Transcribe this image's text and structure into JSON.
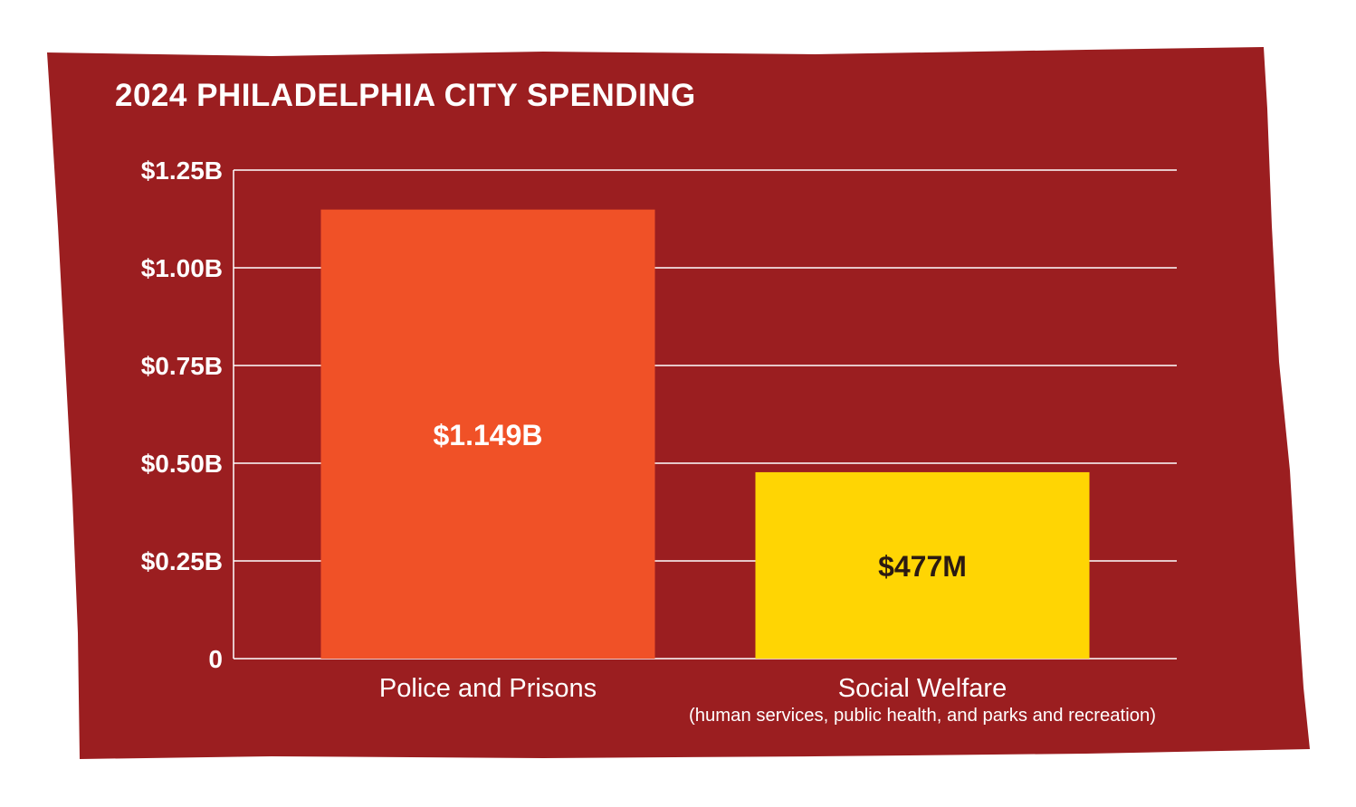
{
  "chart_data": {
    "type": "bar",
    "title": "2024 PHILADELPHIA CITY SPENDING",
    "categories": [
      "Police and Prisons",
      "Social Welfare"
    ],
    "category_sublabels": [
      "",
      "(human services, public health, and parks and recreation)"
    ],
    "values": [
      1.149,
      0.477
    ],
    "value_labels": [
      "$1.149B",
      "$477M"
    ],
    "units": "billions USD",
    "ylim": [
      0,
      1.25
    ],
    "yticks": [
      0,
      0.25,
      0.5,
      0.75,
      1.0,
      1.25
    ],
    "ytick_labels": [
      "0",
      "$0.25B",
      "$0.50B",
      "$0.75B",
      "$1.00B",
      "$1.25B"
    ],
    "grid": true,
    "xlabel": "",
    "ylabel": "",
    "colors": {
      "background": "#9b1e20",
      "bars": [
        "#f05127",
        "#ffd503"
      ],
      "value_label_colors": [
        "#ffffff",
        "#2b1a12"
      ],
      "text": "#ffffff"
    }
  }
}
